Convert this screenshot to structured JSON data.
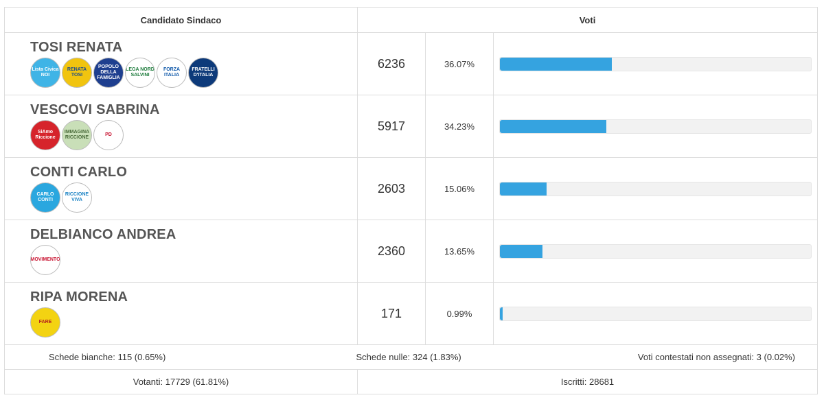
{
  "headers": {
    "candidate": "Candidato Sindaco",
    "votes": "Voti"
  },
  "candidates": [
    {
      "name": "TOSI RENATA",
      "votes": "6236",
      "percent": "36.07%",
      "share": 36.07,
      "logos": [
        {
          "text": "Lista Civica NOI",
          "bg": "#3fb4e6",
          "fg": "#ffffff"
        },
        {
          "text": "RENATA TOSI",
          "bg": "#f1c40f",
          "fg": "#1a4b8c"
        },
        {
          "text": "POPOLO DELLA FAMIGLIA",
          "bg": "#1e3f8f",
          "fg": "#ffffff"
        },
        {
          "text": "LEGA NORD SALVINI",
          "bg": "#ffffff",
          "fg": "#1b7a3a"
        },
        {
          "text": "FORZA ITALIA",
          "bg": "#ffffff",
          "fg": "#0a55a8"
        },
        {
          "text": "FRATELLI D'ITALIA",
          "bg": "#0d3a7a",
          "fg": "#ffffff"
        }
      ]
    },
    {
      "name": "VESCOVI SABRINA",
      "votes": "5917",
      "percent": "34.23%",
      "share": 34.23,
      "logos": [
        {
          "text": "SiAmo Riccione",
          "bg": "#d6242b",
          "fg": "#ffffff"
        },
        {
          "text": "IMMAGINA RICCIONE",
          "bg": "#c9dfb8",
          "fg": "#4a6b3a"
        },
        {
          "text": "PD",
          "bg": "#ffffff",
          "fg": "#c8102e"
        }
      ]
    },
    {
      "name": "CONTI CARLO",
      "votes": "2603",
      "percent": "15.06%",
      "share": 15.06,
      "logos": [
        {
          "text": "CARLO CONTI",
          "bg": "#2aa7df",
          "fg": "#ffffff"
        },
        {
          "text": "RICCIONE VIVA",
          "bg": "#ffffff",
          "fg": "#1b83c4"
        }
      ]
    },
    {
      "name": "DELBIANCO ANDREA",
      "votes": "2360",
      "percent": "13.65%",
      "share": 13.65,
      "logos": [
        {
          "text": "MOVIMENTO",
          "bg": "#ffffff",
          "fg": "#c8102e"
        }
      ]
    },
    {
      "name": "RIPA MORENA",
      "votes": "171",
      "percent": "0.99%",
      "share": 0.99,
      "logos": [
        {
          "text": "FARE",
          "bg": "#f3d312",
          "fg": "#b41e1e"
        }
      ]
    }
  ],
  "footer": {
    "blank": "Schede bianche: 115 (0.65%)",
    "null": "Schede nulle: 324 (1.83%)",
    "contested": "Voti contestati non assegnati: 3 (0.02%)",
    "voters": "Votanti: 17729 (61.81%)",
    "registered": "Iscritti: 28681"
  },
  "colors": {
    "bar": "#35a3e0",
    "track": "#f2f2f2",
    "border": "#dcdcdc"
  }
}
